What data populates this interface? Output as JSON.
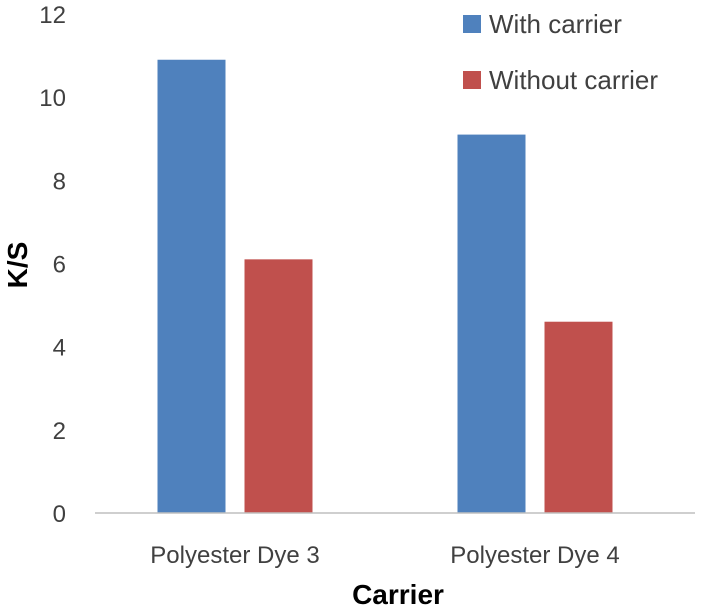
{
  "chart_data": {
    "type": "bar",
    "title": "",
    "xlabel": "Carrier",
    "ylabel": "K/S",
    "categories": [
      "Polyester Dye 3",
      "Polyester Dye 4"
    ],
    "series": [
      {
        "name": "With carrier",
        "values": [
          10.9,
          9.1
        ],
        "color": "#4f81bd"
      },
      {
        "name": "Without carrier",
        "values": [
          6.1,
          4.6
        ],
        "color": "#c0504d"
      }
    ],
    "ylim": [
      0,
      12
    ],
    "yticks": [
      0,
      2,
      4,
      6,
      8,
      10,
      12
    ],
    "grid": false,
    "legend_position": "top-right"
  }
}
